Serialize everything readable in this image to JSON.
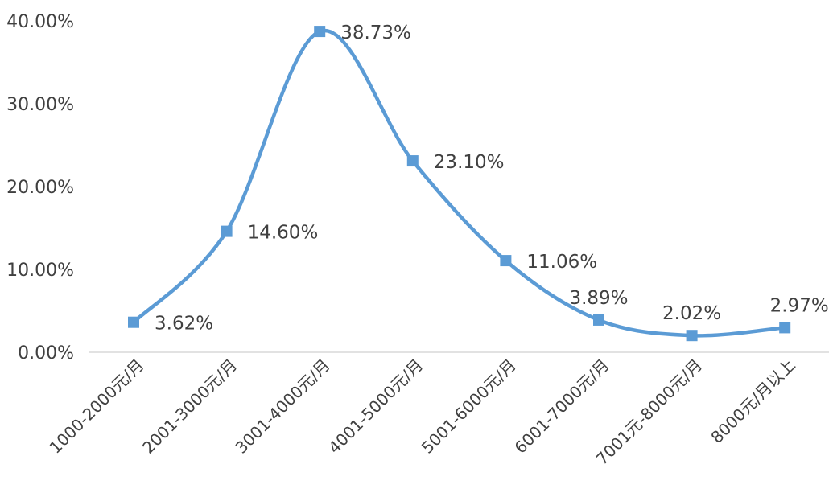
{
  "chart_data": {
    "type": "line",
    "categories": [
      "1000-2000元/月",
      "2001-3000元/月",
      "3001-4000元/月",
      "4001-5000元/月",
      "5001-6000元/月",
      "6001-7000元/月",
      "7001元-8000元/月",
      "8000元/月以上"
    ],
    "series": [
      {
        "values": [
          3.62,
          14.6,
          38.73,
          23.1,
          11.06,
          3.89,
          2.02,
          2.97
        ],
        "labels": [
          "3.62%",
          "14.60%",
          "38.73%",
          "23.10%",
          "11.06%",
          "3.89%",
          "2.02%",
          "2.97%"
        ],
        "color": "#5B9BD5"
      }
    ],
    "yticks": [
      "0.00%",
      "10.00%",
      "20.00%",
      "30.00%",
      "40.00%"
    ],
    "ylim": [
      0,
      40
    ],
    "grid": false,
    "smooth": true,
    "marker": "square",
    "axis_color": "#d9d9d9"
  }
}
